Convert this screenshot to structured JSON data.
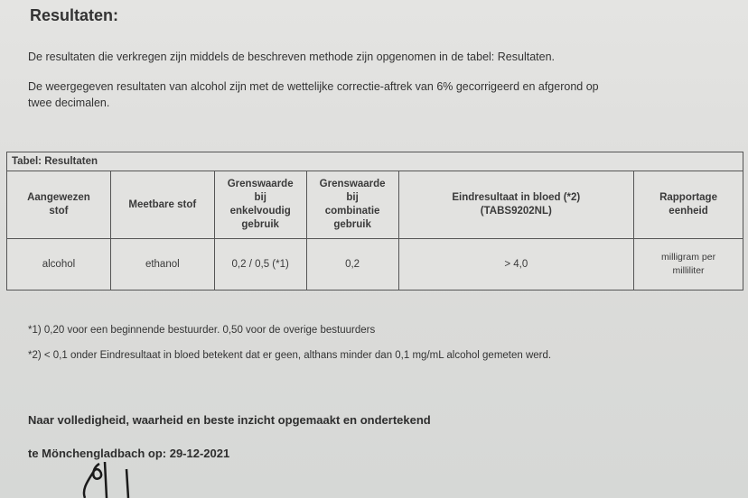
{
  "title": "Resultaten:",
  "paragraphs": [
    "De resultaten die verkregen zijn middels de beschreven methode zijn opgenomen in de tabel: Resultaten.",
    "De weergegeven resultaten van alcohol zijn met de wettelijke correctie-aftrek van 6% gecorrigeerd en afgerond op",
    "twee decimalen."
  ],
  "table": {
    "caption": "Tabel: Resultaten",
    "headers": [
      [
        "Aangewezen",
        "stof"
      ],
      [
        "Meetbare stof"
      ],
      [
        "Grenswaarde",
        "bij",
        "enkelvoudig",
        "gebruik"
      ],
      [
        "Grenswaarde",
        "bij",
        "combinatie",
        "gebruik"
      ],
      [
        "Eindresultaat in bloed (*2)",
        "(TABS9202NL)"
      ],
      [
        "Rapportage",
        "eenheid"
      ]
    ],
    "row": [
      "alcohol",
      "ethanol",
      "0,2 / 0,5 (*1)",
      "0,2",
      "> 4,0",
      [
        "milligram per",
        "milliliter"
      ]
    ]
  },
  "footnotes": [
    "*1)  0,20 voor een beginnende bestuurder. 0,50 voor de overige bestuurders",
    "*2)  < 0,1 onder Eindresultaat in bloed betekent dat er geen, althans minder dan 0,1 mg/mL alcohol gemeten werd."
  ],
  "closing": "Naar volledigheid, waarheid en beste inzicht opgemaakt en ondertekend",
  "place_date": "te Mönchengladbach op:  29-12-2021"
}
